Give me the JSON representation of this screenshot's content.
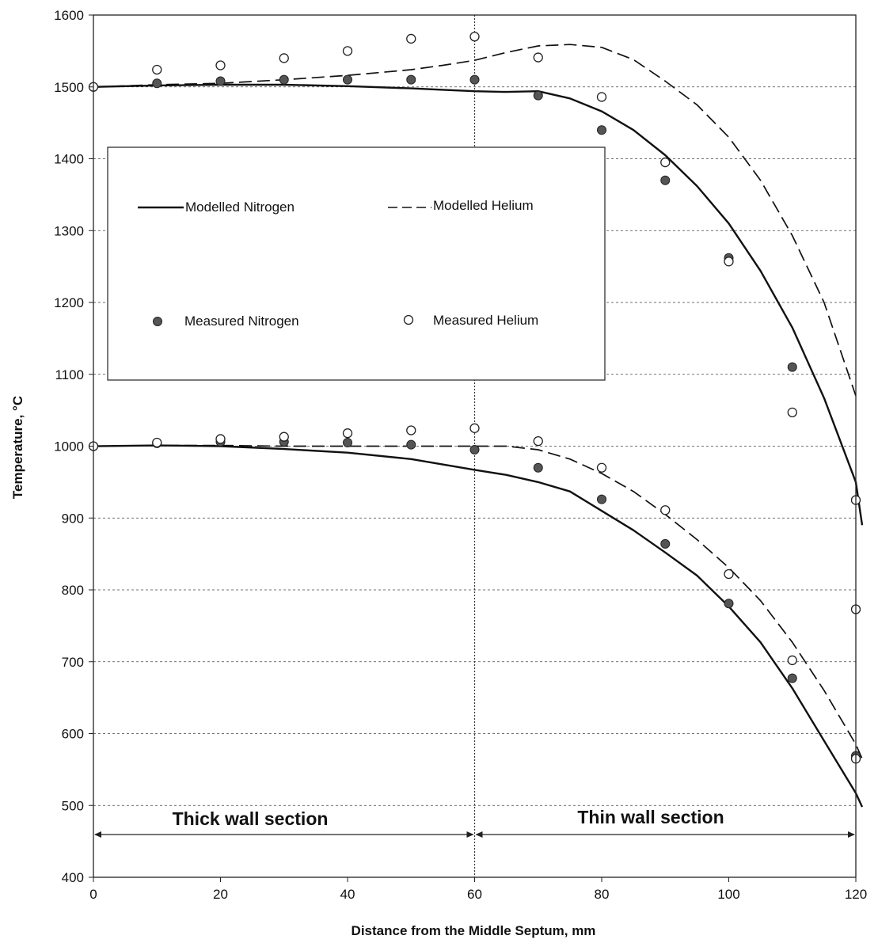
{
  "chart_data": {
    "type": "line",
    "title": "",
    "xlabel": "Distance from the Middle Septum, mm",
    "ylabel": "Temperature, °C",
    "xlim": [
      0,
      120
    ],
    "ylim": [
      400,
      1600
    ],
    "x_ticks": [
      "0",
      "20",
      "40",
      "60",
      "80",
      "100",
      "120"
    ],
    "y_ticks": [
      "400",
      "500",
      "600",
      "700",
      "800",
      "900",
      "1000",
      "1100",
      "1200",
      "1300",
      "1400",
      "1500",
      "1600"
    ],
    "grid": "horizontal dashed",
    "legend_placement": "upper-left inset",
    "legend": [
      {
        "label": "Modelled Nitrogen",
        "marker": "solid-line"
      },
      {
        "label": "Modelled Helium",
        "marker": "dashed-line"
      },
      {
        "label": "Measured Nitrogen",
        "marker": "filled-circle"
      },
      {
        "label": "Measured Helium",
        "marker": "open-circle"
      }
    ],
    "annotations": {
      "section_divider_x": 60,
      "thick": "Thick wall section",
      "thin": "Thin wall section"
    },
    "series": [
      {
        "name": "Modelled Nitrogen",
        "kind": "solid-line",
        "x": [
          0,
          10,
          20,
          30,
          40,
          50,
          55,
          60,
          65,
          70,
          75,
          80,
          85,
          90,
          95,
          100,
          105,
          110,
          115,
          120,
          121
        ],
        "y": [
          1500,
          1502,
          1503,
          1503,
          1501,
          1498,
          1496,
          1494,
          1493,
          1494,
          1484,
          1466,
          1440,
          1405,
          1362,
          1310,
          1244,
          1165,
          1067,
          950,
          890
        ]
      },
      {
        "name": "Modelled Helium",
        "kind": "dashed-line",
        "x": [
          0,
          10,
          20,
          30,
          40,
          50,
          55,
          60,
          65,
          70,
          75,
          80,
          85,
          90,
          95,
          100,
          105,
          110,
          115,
          120
        ],
        "y": [
          1500,
          1503,
          1505,
          1510,
          1516,
          1524,
          1530,
          1537,
          1548,
          1557,
          1559,
          1555,
          1538,
          1508,
          1475,
          1430,
          1370,
          1293,
          1200,
          1070
        ]
      },
      {
        "name": "Measured Nitrogen",
        "kind": "filled-circle",
        "x": [
          10,
          20,
          30,
          40,
          50,
          60,
          70,
          80,
          90,
          100,
          110,
          120
        ],
        "y": [
          1505,
          1508,
          1510,
          1510,
          1510,
          1510,
          1488,
          1440,
          1370,
          1262,
          1110,
          925
        ]
      },
      {
        "name": "Measured Helium",
        "kind": "open-circle",
        "x": [
          0,
          10,
          20,
          30,
          40,
          50,
          60,
          70,
          80,
          90,
          100,
          110,
          120
        ],
        "y": [
          1500,
          1524,
          1530,
          1540,
          1550,
          1567,
          1570,
          1541,
          1486,
          1395,
          1257,
          1047,
          925
        ]
      },
      {
        "name": "Modelled Nitrogen",
        "kind": "solid-line",
        "x": [
          0,
          10,
          20,
          30,
          40,
          50,
          60,
          65,
          70,
          75,
          80,
          85,
          90,
          95,
          100,
          105,
          110,
          115,
          120,
          121
        ],
        "y": [
          1000,
          1001,
          1000,
          996,
          991,
          982,
          967,
          960,
          950,
          937,
          910,
          883,
          852,
          820,
          777,
          727,
          663,
          590,
          517,
          498
        ]
      },
      {
        "name": "Modelled Helium",
        "kind": "dashed-line",
        "x": [
          0,
          10,
          20,
          30,
          40,
          50,
          60,
          65,
          70,
          75,
          80,
          85,
          90,
          95,
          100,
          105,
          110,
          115,
          120,
          121
        ],
        "y": [
          1000,
          1001,
          1001,
          1000,
          1000,
          1000,
          1000,
          1000,
          995,
          982,
          962,
          937,
          905,
          870,
          831,
          785,
          727,
          660,
          585,
          565
        ]
      },
      {
        "name": "Measured Nitrogen",
        "kind": "filled-circle",
        "x": [
          10,
          20,
          30,
          40,
          50,
          60,
          70,
          80,
          90,
          100,
          110,
          120
        ],
        "y": [
          1004,
          1006,
          1006,
          1005,
          1002,
          995,
          970,
          926,
          864,
          781,
          677,
          569
        ]
      },
      {
        "name": "Measured Helium",
        "kind": "open-circle",
        "x": [
          0,
          10,
          20,
          30,
          40,
          50,
          60,
          70,
          80,
          90,
          100,
          110,
          120
        ],
        "y": [
          1000,
          1005,
          1010,
          1013,
          1018,
          1022,
          1025,
          1007,
          970,
          911,
          822,
          702,
          565
        ]
      },
      {
        "name": "Measured Helium",
        "kind": "open-circle",
        "x": [
          120
        ],
        "y": [
          773
        ]
      }
    ]
  }
}
